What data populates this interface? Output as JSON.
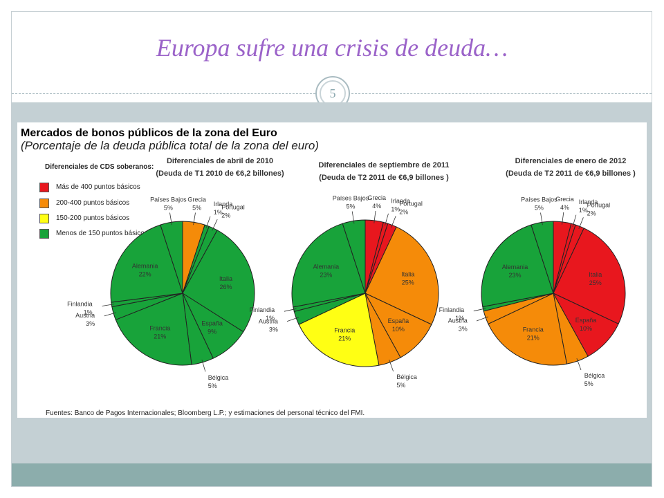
{
  "slide": {
    "title": "Europa sufre una crisis de deuda…",
    "page_number": "5",
    "overlay_title": "Mercados de bonos públicos de la zona del Euro"
  },
  "colors": {
    "title": "#9b63c9",
    "red": "#e8171e",
    "orange": "#f58b09",
    "yellow": "#ffff14",
    "green": "#18a33a",
    "band_gray": "#c4d0d4",
    "band_teal": "#8cadac"
  },
  "chart_data": {
    "type": "pie",
    "subtitle": "(Porcentaje de la deuda pública total de la zona del euro)",
    "legend": {
      "title": "Diferenciales de CDS soberanos:",
      "entries": [
        {
          "label": "Más de 400 puntos básicos",
          "color": "#e8171e"
        },
        {
          "label": "200-400  puntos básicos",
          "color": "#f58b09"
        },
        {
          "label": "150-200  puntos básicos",
          "color": "#ffff14"
        },
        {
          "label": "Menos de 150 puntos básicos",
          "color": "#18a33a"
        }
      ]
    },
    "source": "Fuentes: Banco de Pagos Internacionales;  Bloomberg L.P.; y estimaciones del personal técnico del FMI.",
    "pies": [
      {
        "title_lines": [
          "Diferenciales de abril de 2010",
          "(Deuda de T1 2010 de €6,2 billones)"
        ],
        "slices": [
          {
            "name": "Grecia",
            "value": 5,
            "label": "5%",
            "color": "#f58b09"
          },
          {
            "name": "Irlanda",
            "value": 1,
            "label": "1%",
            "color": "#18a33a"
          },
          {
            "name": "Portugal",
            "value": 2,
            "label": "2%",
            "color": "#18a33a"
          },
          {
            "name": "Italia",
            "value": 26,
            "label": "26%",
            "color": "#18a33a"
          },
          {
            "name": "España",
            "value": 9,
            "label": "9%",
            "color": "#18a33a"
          },
          {
            "name": "Bélgica",
            "value": 5,
            "label": "5%",
            "color": "#18a33a"
          },
          {
            "name": "Francia",
            "value": 21,
            "label": "21%",
            "color": "#18a33a"
          },
          {
            "name": "Austria",
            "value": 3,
            "label": "3%",
            "color": "#18a33a"
          },
          {
            "name": "Finlandia",
            "value": 1,
            "label": "1%",
            "color": "#18a33a"
          },
          {
            "name": "Alemania",
            "value": 22,
            "label": "22%",
            "color": "#18a33a"
          },
          {
            "name": "Países Bajos",
            "value": 5,
            "label": "5%",
            "color": "#18a33a"
          }
        ]
      },
      {
        "title_lines": [
          "Diferenciales de septiembre de 2011",
          "(Deuda de T2 2011 de €6,9 billones )"
        ],
        "slices": [
          {
            "name": "Grecia",
            "value": 4,
            "label": "4%",
            "color": "#e8171e"
          },
          {
            "name": "Irlanda",
            "value": 1,
            "label": "1%",
            "color": "#e8171e"
          },
          {
            "name": "Portugal",
            "value": 2,
            "label": "2%",
            "color": "#e8171e"
          },
          {
            "name": "Italia",
            "value": 25,
            "label": "25%",
            "color": "#f58b09"
          },
          {
            "name": "España",
            "value": 10,
            "label": "10%",
            "color": "#f58b09"
          },
          {
            "name": "Bélgica",
            "value": 5,
            "label": "5%",
            "color": "#f58b09"
          },
          {
            "name": "Francia",
            "value": 21,
            "label": "21%",
            "color": "#ffff14"
          },
          {
            "name": "Austria",
            "value": 3,
            "label": "3%",
            "color": "#18a33a"
          },
          {
            "name": "Finlandia",
            "value": 1,
            "label": "1%",
            "color": "#18a33a"
          },
          {
            "name": "Alemania",
            "value": 23,
            "label": "23%",
            "color": "#18a33a"
          },
          {
            "name": "Países Bajos",
            "value": 5,
            "label": "5%",
            "color": "#18a33a"
          }
        ]
      },
      {
        "title_lines": [
          "Diferenciales de enero de 2012",
          "(Deuda de T2 2011 de €6,9 billones )"
        ],
        "slices": [
          {
            "name": "Grecia",
            "value": 4,
            "label": "4%",
            "color": "#e8171e"
          },
          {
            "name": "Irlanda",
            "value": 1,
            "label": "1%",
            "color": "#e8171e"
          },
          {
            "name": "Portugal",
            "value": 2,
            "label": "2%",
            "color": "#e8171e"
          },
          {
            "name": "Italia",
            "value": 25,
            "label": "25%",
            "color": "#e8171e"
          },
          {
            "name": "España",
            "value": 10,
            "label": "10%",
            "color": "#e8171e"
          },
          {
            "name": "Bélgica",
            "value": 5,
            "label": "5%",
            "color": "#f58b09"
          },
          {
            "name": "Francia",
            "value": 21,
            "label": "21%",
            "color": "#f58b09"
          },
          {
            "name": "Austria",
            "value": 3,
            "label": "3%",
            "color": "#f58b09"
          },
          {
            "name": "Finlandia",
            "value": 1,
            "label": "1%",
            "color": "#18a33a"
          },
          {
            "name": "Alemania",
            "value": 23,
            "label": "23%",
            "color": "#18a33a"
          },
          {
            "name": "Países Bajos",
            "value": 5,
            "label": "5%",
            "color": "#18a33a"
          }
        ]
      }
    ]
  }
}
